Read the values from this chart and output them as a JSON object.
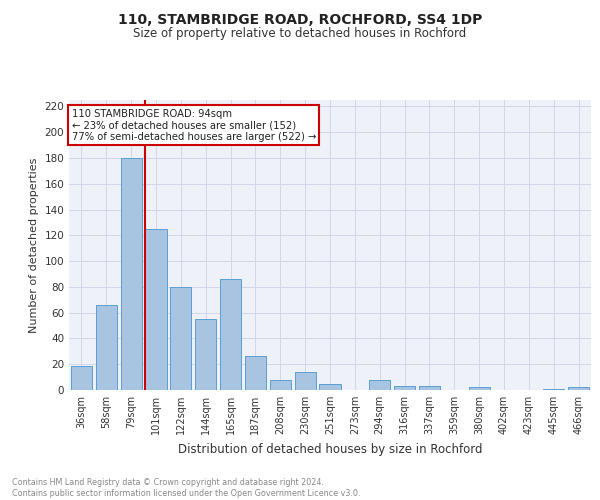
{
  "title": "110, STAMBRIDGE ROAD, ROCHFORD, SS4 1DP",
  "subtitle": "Size of property relative to detached houses in Rochford",
  "xlabel": "Distribution of detached houses by size in Rochford",
  "ylabel": "Number of detached properties",
  "categories": [
    "36sqm",
    "58sqm",
    "79sqm",
    "101sqm",
    "122sqm",
    "144sqm",
    "165sqm",
    "187sqm",
    "208sqm",
    "230sqm",
    "251sqm",
    "273sqm",
    "294sqm",
    "316sqm",
    "337sqm",
    "359sqm",
    "380sqm",
    "402sqm",
    "423sqm",
    "445sqm",
    "466sqm"
  ],
  "values": [
    19,
    66,
    180,
    125,
    80,
    55,
    86,
    26,
    8,
    14,
    5,
    0,
    8,
    3,
    3,
    0,
    2,
    0,
    0,
    1,
    2
  ],
  "bar_color": "#a8c4e0",
  "bar_edge_color": "#5a9fd4",
  "vline_color": "#cc0000",
  "annotation_lines": [
    "110 STAMBRIDGE ROAD: 94sqm",
    "← 23% of detached houses are smaller (152)",
    "77% of semi-detached houses are larger (522) →"
  ],
  "annotation_box_color": "#cc0000",
  "ylim": [
    0,
    225
  ],
  "yticks": [
    0,
    20,
    40,
    60,
    80,
    100,
    120,
    140,
    160,
    180,
    200,
    220
  ],
  "grid_color": "#d0d8e8",
  "background_color": "#eef2f8",
  "footer_line1": "Contains HM Land Registry data © Crown copyright and database right 2024.",
  "footer_line2": "Contains public sector information licensed under the Open Government Licence v3.0."
}
